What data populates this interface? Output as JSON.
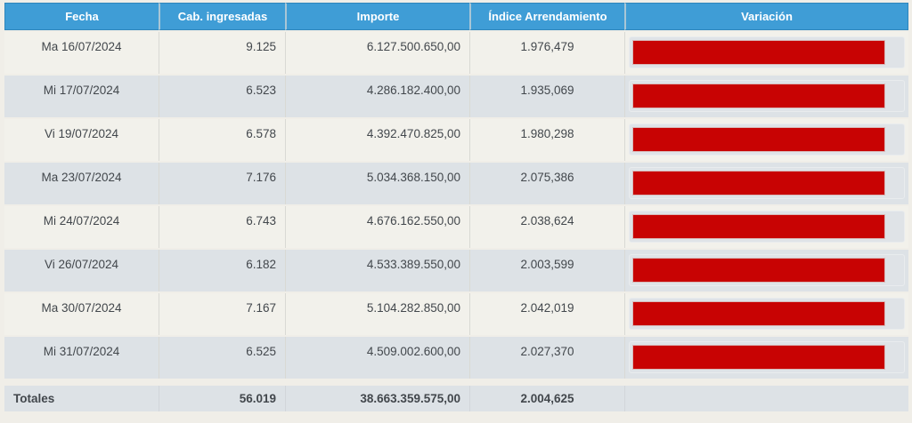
{
  "table": {
    "columns": [
      {
        "label": "Fecha"
      },
      {
        "label": "Cab. ingresadas"
      },
      {
        "label": "Importe"
      },
      {
        "label": "Índice Arrendamiento"
      },
      {
        "label": "Variación"
      }
    ],
    "rows": [
      {
        "fecha": "Ma 16/07/2024",
        "cab": "9.125",
        "importe": "6.127.500.650,00",
        "indice": "1.976,479",
        "bar_pct": 94
      },
      {
        "fecha": "Mi 17/07/2024",
        "cab": "6.523",
        "importe": "4.286.182.400,00",
        "indice": "1.935,069",
        "bar_pct": 94
      },
      {
        "fecha": "Vi 19/07/2024",
        "cab": "6.578",
        "importe": "4.392.470.825,00",
        "indice": "1.980,298",
        "bar_pct": 94
      },
      {
        "fecha": "Ma 23/07/2024",
        "cab": "7.176",
        "importe": "5.034.368.150,00",
        "indice": "2.075,386",
        "bar_pct": 94
      },
      {
        "fecha": "Mi 24/07/2024",
        "cab": "6.743",
        "importe": "4.676.162.550,00",
        "indice": "2.038,624",
        "bar_pct": 94
      },
      {
        "fecha": "Vi 26/07/2024",
        "cab": "6.182",
        "importe": "4.533.389.550,00",
        "indice": "2.003,599",
        "bar_pct": 94
      },
      {
        "fecha": "Ma 30/07/2024",
        "cab": "7.167",
        "importe": "5.104.282.850,00",
        "indice": "2.042,019",
        "bar_pct": 94
      },
      {
        "fecha": "Mi 31/07/2024",
        "cab": "6.525",
        "importe": "4.509.002.600,00",
        "indice": "2.027,370",
        "bar_pct": 94
      }
    ],
    "totals": {
      "label": "Totales",
      "cab": "56.019",
      "importe": "38.663.359.575,00",
      "indice": "2.004,625"
    }
  },
  "colors": {
    "header_bg": "#3F9DD6",
    "bar_red": "#C80303",
    "row_odd": "#F2F1EB",
    "row_even": "#DDE2E6",
    "page_bg": "#F0EEE8"
  },
  "chart_data": {
    "type": "table",
    "title": "",
    "columns": [
      "Fecha",
      "Cab. ingresadas",
      "Importe",
      "Índice Arrendamiento",
      "Variación"
    ],
    "rows": [
      [
        "Ma 16/07/2024",
        9125,
        "6.127.500.650,00",
        "1.976,479"
      ],
      [
        "Mi 17/07/2024",
        6523,
        "4.286.182.400,00",
        "1.935,069"
      ],
      [
        "Vi 19/07/2024",
        6578,
        "4.392.470.825,00",
        "1.980,298"
      ],
      [
        "Ma 23/07/2024",
        7176,
        "5.034.368.150,00",
        "2.075,386"
      ],
      [
        "Mi 24/07/2024",
        6743,
        "4.676.162.550,00",
        "2.038,624"
      ],
      [
        "Vi 26/07/2024",
        6182,
        "4.533.389.550,00",
        "2.003,599"
      ],
      [
        "Ma 30/07/2024",
        7167,
        "5.104.282.850,00",
        "2.042,019"
      ],
      [
        "Mi 31/07/2024",
        6525,
        "4.509.002.600,00",
        "2.027,370"
      ]
    ],
    "totals_row": [
      "Totales",
      56019,
      "38.663.359.575,00",
      "2.004,625"
    ]
  }
}
